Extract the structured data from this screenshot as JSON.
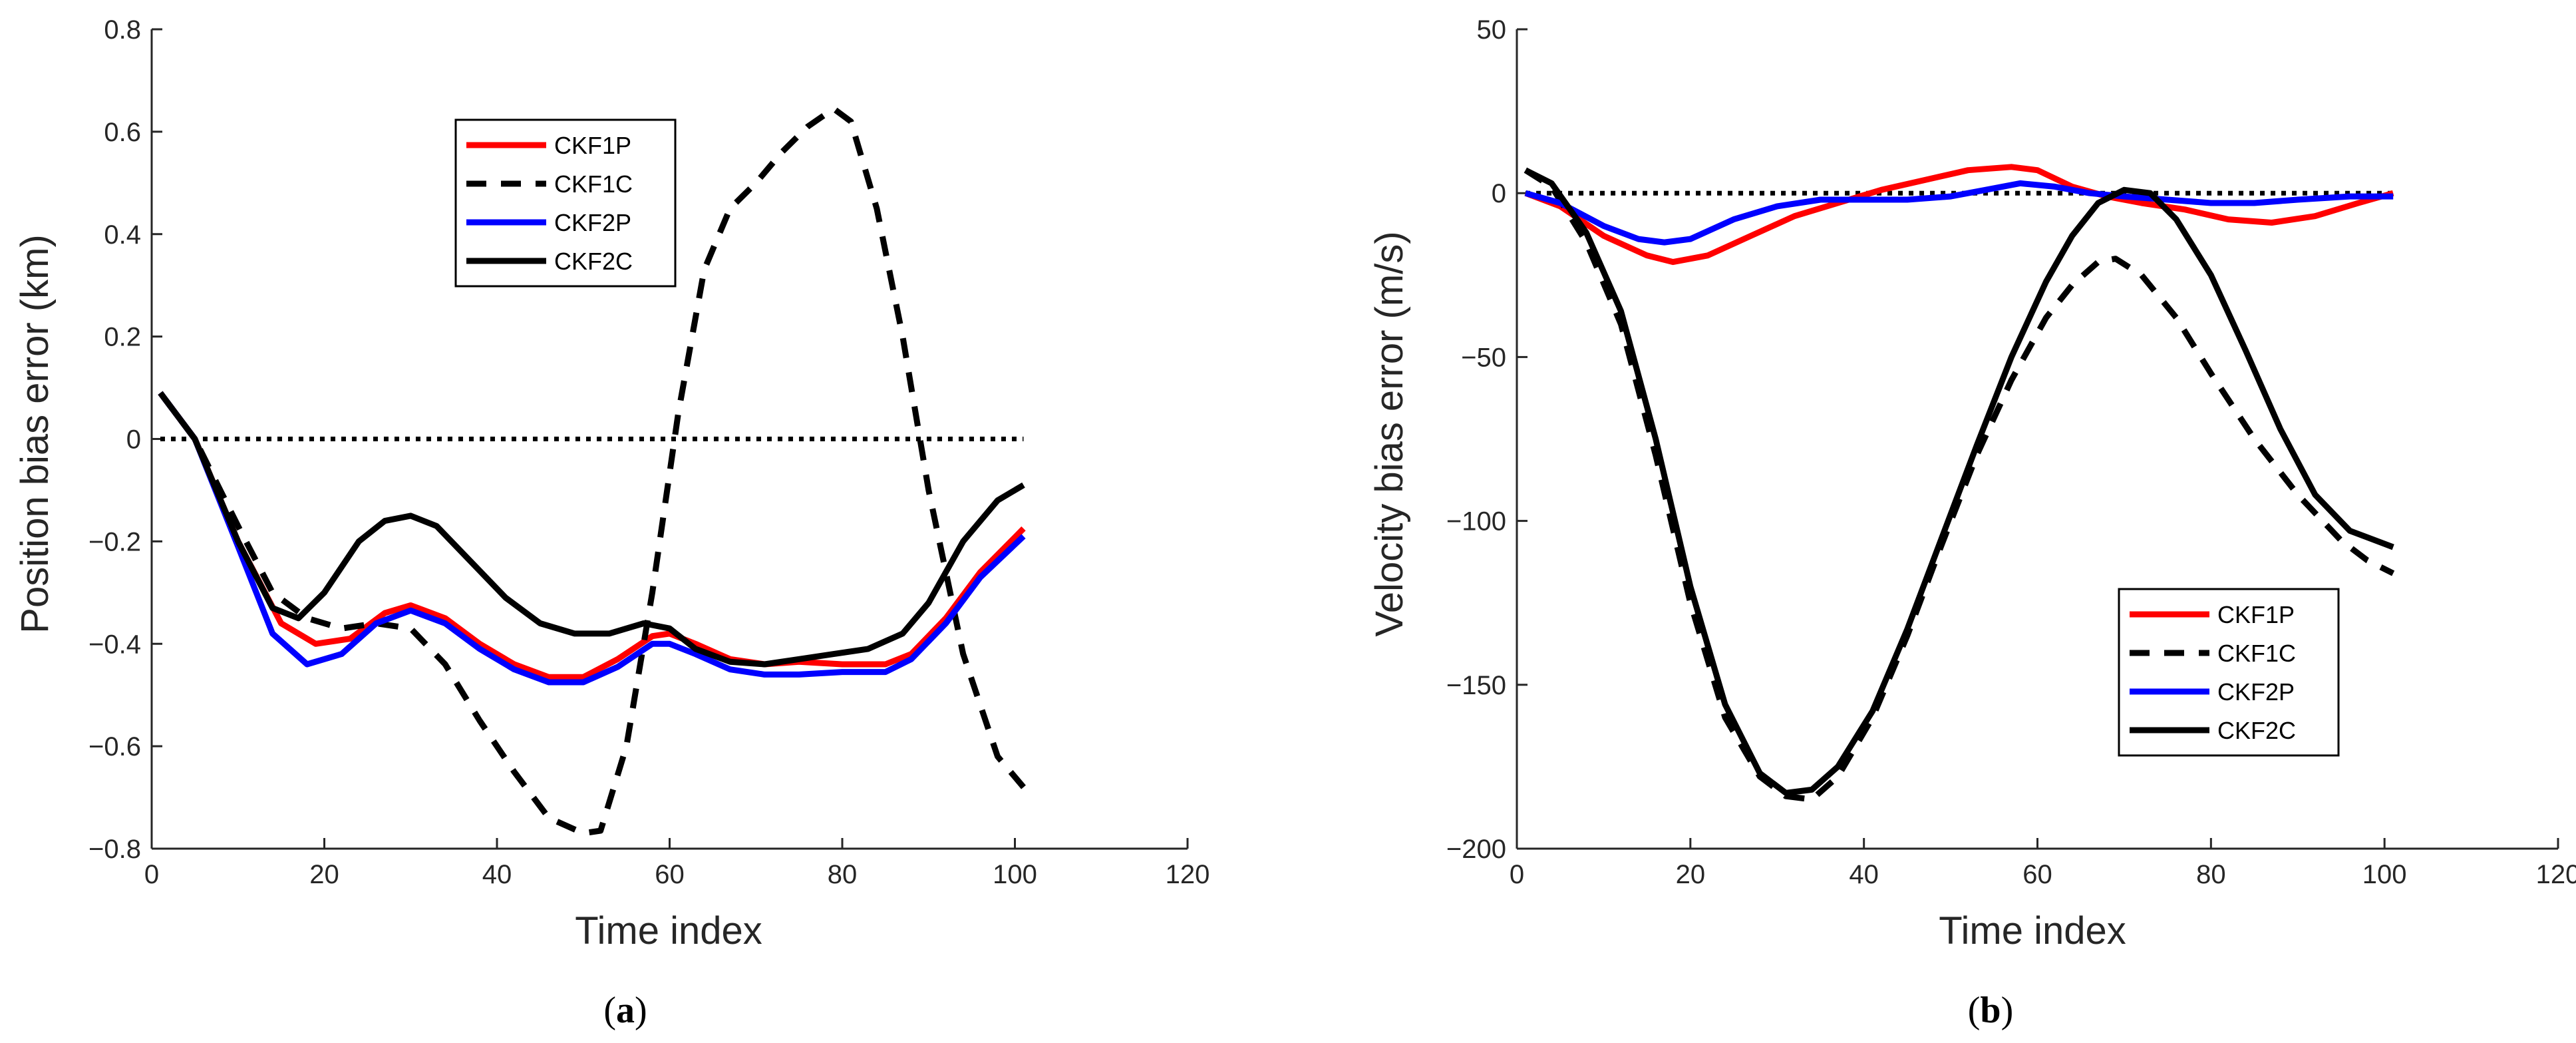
{
  "chart_data": [
    {
      "id": "a",
      "type": "line",
      "caption": "(a)",
      "caption_letter": "a",
      "xlabel": "Time index",
      "ylabel": "Position bias error (km)",
      "xlim": [
        0,
        120
      ],
      "ylim": [
        -0.8,
        0.8
      ],
      "xticks": [
        0,
        20,
        40,
        60,
        80,
        100,
        120
      ],
      "yticks": [
        -0.8,
        -0.6,
        -0.4,
        -0.2,
        0,
        0.2,
        0.4,
        0.6,
        0.8
      ],
      "ytick_labels": [
        "−0.8",
        "−0.6",
        "−0.4",
        "−0.2",
        "0",
        "0.2",
        "0.4",
        "0.6",
        "0.8"
      ],
      "xtick_labels": [
        "0",
        "20",
        "40",
        "60",
        "80",
        "100",
        "120"
      ],
      "legend_position": "top-center",
      "reference_line": {
        "y": 0,
        "x": [
          1,
          101
        ],
        "style": "dotted"
      },
      "series": [
        {
          "name": "CKF1P",
          "color": "#ff0000",
          "style": "solid",
          "x": [
            1,
            5,
            10,
            15,
            19,
            23,
            27,
            30,
            34,
            38,
            42,
            46,
            50,
            54,
            58,
            60,
            63,
            67,
            71,
            75,
            80,
            85,
            88,
            92,
            96,
            101
          ],
          "y": [
            0.09,
            0.0,
            -0.2,
            -0.36,
            -0.4,
            -0.39,
            -0.34,
            -0.325,
            -0.35,
            -0.4,
            -0.44,
            -0.465,
            -0.465,
            -0.43,
            -0.385,
            -0.38,
            -0.4,
            -0.43,
            -0.44,
            -0.435,
            -0.44,
            -0.44,
            -0.42,
            -0.35,
            -0.26,
            -0.175
          ]
        },
        {
          "name": "CKF1C",
          "color": "#000000",
          "style": "dashed",
          "x": [
            1,
            5,
            10,
            14,
            18,
            22,
            26,
            30,
            34,
            38,
            42,
            46,
            50,
            52,
            55,
            58,
            61,
            64,
            67,
            70,
            73,
            76,
            79,
            81,
            84,
            87,
            90,
            94,
            98,
            101
          ],
          "y": [
            0.09,
            0.0,
            -0.17,
            -0.3,
            -0.35,
            -0.37,
            -0.36,
            -0.37,
            -0.44,
            -0.55,
            -0.65,
            -0.74,
            -0.77,
            -0.765,
            -0.6,
            -0.3,
            0.05,
            0.33,
            0.45,
            0.5,
            0.56,
            0.61,
            0.645,
            0.62,
            0.45,
            0.2,
            -0.1,
            -0.42,
            -0.62,
            -0.68
          ]
        },
        {
          "name": "CKF2P",
          "color": "#0000ff",
          "style": "solid",
          "x": [
            1,
            5,
            10,
            14,
            18,
            22,
            26,
            30,
            34,
            38,
            42,
            46,
            50,
            54,
            58,
            60,
            63,
            67,
            71,
            75,
            80,
            85,
            88,
            92,
            96,
            101
          ],
          "y": [
            0.09,
            0.0,
            -0.21,
            -0.38,
            -0.44,
            -0.42,
            -0.36,
            -0.335,
            -0.36,
            -0.41,
            -0.45,
            -0.475,
            -0.475,
            -0.445,
            -0.4,
            -0.4,
            -0.42,
            -0.45,
            -0.46,
            -0.46,
            -0.455,
            -0.455,
            -0.43,
            -0.36,
            -0.27,
            -0.19
          ]
        },
        {
          "name": "CKF2C",
          "color": "#000000",
          "style": "solid",
          "x": [
            1,
            5,
            10,
            14,
            17,
            20,
            24,
            27,
            30,
            33,
            37,
            41,
            45,
            49,
            53,
            57,
            60,
            63,
            67,
            71,
            75,
            79,
            83,
            87,
            90,
            94,
            98,
            101
          ],
          "y": [
            0.09,
            0.0,
            -0.2,
            -0.33,
            -0.35,
            -0.3,
            -0.2,
            -0.16,
            -0.15,
            -0.17,
            -0.24,
            -0.31,
            -0.36,
            -0.38,
            -0.38,
            -0.36,
            -0.37,
            -0.41,
            -0.435,
            -0.44,
            -0.43,
            -0.42,
            -0.41,
            -0.38,
            -0.32,
            -0.2,
            -0.12,
            -0.09
          ]
        }
      ]
    },
    {
      "id": "b",
      "type": "line",
      "caption": "(b)",
      "caption_letter": "b",
      "xlabel": "Time index",
      "ylabel": "Velocity bias error (m/s)",
      "xlim": [
        0,
        120
      ],
      "ylim": [
        -200,
        50
      ],
      "xticks": [
        0,
        20,
        40,
        60,
        80,
        100,
        120
      ],
      "yticks": [
        -200,
        -150,
        -100,
        -50,
        0,
        50
      ],
      "ytick_labels": [
        "−200",
        "−150",
        "−100",
        "−50",
        "0",
        "50"
      ],
      "xtick_labels": [
        "0",
        "20",
        "40",
        "60",
        "80",
        "100",
        "120"
      ],
      "legend_position": "bottom-right",
      "reference_line": {
        "y": 0,
        "x": [
          1,
          101
        ],
        "style": "dotted"
      },
      "series": [
        {
          "name": "CKF1P",
          "color": "#ff0000",
          "style": "solid",
          "x": [
            1,
            5,
            10,
            15,
            18,
            22,
            27,
            32,
            37,
            42,
            47,
            52,
            57,
            60,
            64,
            68,
            72,
            77,
            82,
            87,
            92,
            97,
            101
          ],
          "y": [
            0,
            -4,
            -13,
            -19,
            -21,
            -19,
            -13,
            -7,
            -3,
            1,
            4,
            7,
            8,
            7,
            2,
            -1,
            -3,
            -5,
            -8,
            -9,
            -7,
            -3,
            0
          ]
        },
        {
          "name": "CKF1C",
          "color": "#000000",
          "style": "dashed",
          "x": [
            1,
            4,
            8,
            12,
            16,
            20,
            24,
            28,
            31,
            34,
            37,
            41,
            45,
            49,
            53,
            57,
            61,
            64,
            67,
            69,
            72,
            76,
            80,
            85,
            90,
            95,
            98,
            101
          ],
          "y": [
            7,
            2,
            -15,
            -40,
            -80,
            -125,
            -160,
            -178,
            -184,
            -185,
            -178,
            -160,
            -135,
            -107,
            -80,
            -57,
            -38,
            -28,
            -21,
            -20,
            -25,
            -38,
            -55,
            -75,
            -92,
            -106,
            -112,
            -116
          ]
        },
        {
          "name": "CKF2P",
          "color": "#0000ff",
          "style": "solid",
          "x": [
            1,
            5,
            10,
            14,
            17,
            20,
            25,
            30,
            35,
            40,
            45,
            50,
            54,
            58,
            62,
            66,
            70,
            75,
            80,
            85,
            90,
            96,
            101
          ],
          "y": [
            0,
            -3,
            -10,
            -14,
            -15,
            -14,
            -8,
            -4,
            -2,
            -2,
            -2,
            -1,
            1,
            3,
            2,
            0,
            -1,
            -2,
            -3,
            -3,
            -2,
            -1,
            -1
          ]
        },
        {
          "name": "CKF2C",
          "color": "#000000",
          "style": "solid",
          "x": [
            1,
            4,
            8,
            12,
            16,
            20,
            24,
            28,
            31,
            34,
            37,
            41,
            45,
            49,
            53,
            57,
            61,
            64,
            67,
            70,
            73,
            76,
            80,
            84,
            88,
            92,
            96,
            101
          ],
          "y": [
            7,
            3,
            -12,
            -36,
            -75,
            -120,
            -156,
            -177,
            -183,
            -182,
            -175,
            -158,
            -133,
            -105,
            -77,
            -50,
            -27,
            -13,
            -3,
            1,
            0,
            -8,
            -25,
            -48,
            -72,
            -92,
            -103,
            -108
          ]
        }
      ]
    }
  ]
}
